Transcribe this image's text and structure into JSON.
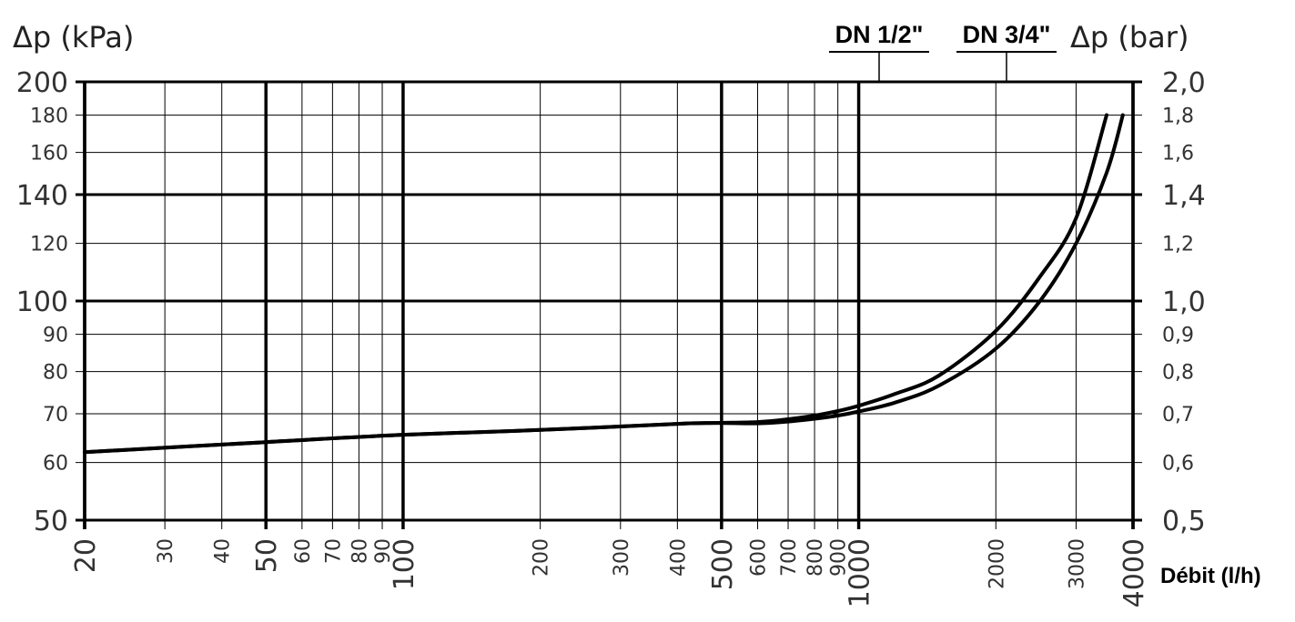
{
  "chart_data": {
    "type": "line",
    "title_left": "Δp (kPa)",
    "title_right": "Δp (bar)",
    "xlabel": "Débit (l/h)",
    "x_scale": "log",
    "y_scale": "log",
    "xlim": [
      20,
      4000
    ],
    "ylim": [
      50,
      200
    ],
    "grid": true,
    "x_ticks": [
      {
        "value": 20,
        "label": "20",
        "major": true
      },
      {
        "value": 30,
        "label": "30",
        "major": false
      },
      {
        "value": 40,
        "label": "40",
        "major": false
      },
      {
        "value": 50,
        "label": "50",
        "major": true
      },
      {
        "value": 60,
        "label": "60",
        "major": false
      },
      {
        "value": 70,
        "label": "70",
        "major": false
      },
      {
        "value": 80,
        "label": "80",
        "major": false
      },
      {
        "value": 90,
        "label": "90",
        "major": false
      },
      {
        "value": 100,
        "label": "100",
        "major": true
      },
      {
        "value": 200,
        "label": "200",
        "major": false
      },
      {
        "value": 300,
        "label": "300",
        "major": false
      },
      {
        "value": 400,
        "label": "400",
        "major": false
      },
      {
        "value": 500,
        "label": "500",
        "major": true
      },
      {
        "value": 600,
        "label": "600",
        "major": false
      },
      {
        "value": 700,
        "label": "700",
        "major": false
      },
      {
        "value": 800,
        "label": "800",
        "major": false
      },
      {
        "value": 900,
        "label": "900",
        "major": false
      },
      {
        "value": 1000,
        "label": "1000",
        "major": true
      },
      {
        "value": 2000,
        "label": "2000",
        "major": false
      },
      {
        "value": 3000,
        "label": "3000",
        "major": false
      },
      {
        "value": 4000,
        "label": "4000",
        "major": true
      }
    ],
    "y_ticks_left": [
      {
        "value": 200,
        "label": "200",
        "major": true
      },
      {
        "value": 180,
        "label": "180",
        "major": false
      },
      {
        "value": 160,
        "label": "160",
        "major": false
      },
      {
        "value": 140,
        "label": "140",
        "major": true
      },
      {
        "value": 120,
        "label": "120",
        "major": false
      },
      {
        "value": 100,
        "label": "100",
        "major": true
      },
      {
        "value": 90,
        "label": "90",
        "major": false
      },
      {
        "value": 80,
        "label": "80",
        "major": false
      },
      {
        "value": 70,
        "label": "70",
        "major": false
      },
      {
        "value": 60,
        "label": "60",
        "major": false
      },
      {
        "value": 50,
        "label": "50",
        "major": true
      }
    ],
    "y_ticks_right": [
      {
        "value": 200,
        "label": "2,0",
        "major": true
      },
      {
        "value": 180,
        "label": "1,8",
        "major": false
      },
      {
        "value": 160,
        "label": "1,6",
        "major": false
      },
      {
        "value": 140,
        "label": "1,4",
        "major": true
      },
      {
        "value": 120,
        "label": "1,2",
        "major": false
      },
      {
        "value": 100,
        "label": "1,0",
        "major": true
      },
      {
        "value": 90,
        "label": "0,9",
        "major": false
      },
      {
        "value": 80,
        "label": "0,8",
        "major": false
      },
      {
        "value": 70,
        "label": "0,7",
        "major": false
      },
      {
        "value": 60,
        "label": "0,6",
        "major": false
      },
      {
        "value": 50,
        "label": "0,5",
        "major": true
      }
    ],
    "series": [
      {
        "name": "DN 1/2\"",
        "leader_x": 1100,
        "points": [
          [
            20,
            62
          ],
          [
            50,
            64
          ],
          [
            100,
            65.5
          ],
          [
            200,
            66.5
          ],
          [
            400,
            67.8
          ],
          [
            480,
            68
          ],
          [
            600,
            68.2
          ],
          [
            700,
            68.8
          ],
          [
            800,
            69.6
          ],
          [
            900,
            70.6
          ],
          [
            1000,
            71.8
          ],
          [
            1200,
            74.5
          ],
          [
            1500,
            79
          ],
          [
            2000,
            91
          ],
          [
            2500,
            108
          ],
          [
            3000,
            130
          ],
          [
            3500,
            180
          ]
        ]
      },
      {
        "name": "DN 3/4\"",
        "leader_x": 2200,
        "points": [
          [
            20,
            62
          ],
          [
            50,
            64
          ],
          [
            100,
            65.5
          ],
          [
            200,
            66.5
          ],
          [
            400,
            67.8
          ],
          [
            480,
            68
          ],
          [
            600,
            67.9
          ],
          [
            700,
            68.3
          ],
          [
            800,
            68.9
          ],
          [
            900,
            69.6
          ],
          [
            1000,
            70.5
          ],
          [
            1200,
            72.5
          ],
          [
            1500,
            76.5
          ],
          [
            2000,
            86
          ],
          [
            2500,
            100
          ],
          [
            3000,
            120
          ],
          [
            3500,
            150
          ],
          [
            3800,
            180
          ]
        ]
      }
    ]
  }
}
